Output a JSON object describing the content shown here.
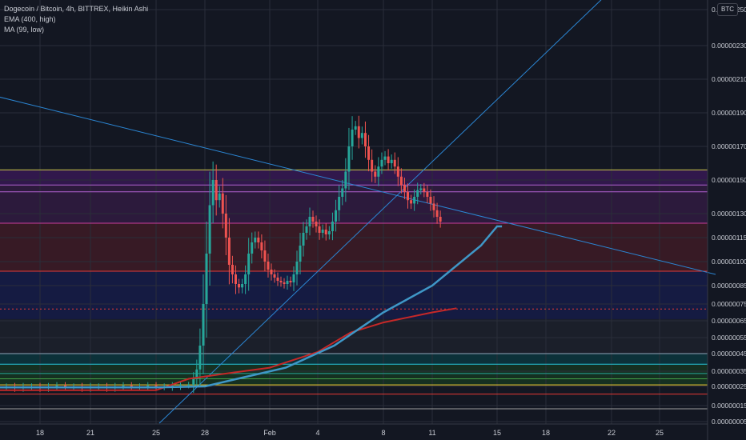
{
  "legend": {
    "symbol": "Dogecoin / Bitcoin, 4h, BITTREX, Heikin Ashi",
    "ema": "EMA (400, high)",
    "ma": "MA (99, low)"
  },
  "currency_badge": "BTC",
  "chart_data": {
    "type": "candlestick",
    "y_axis": {
      "range": [
        4e-07,
        2.6e-06
      ],
      "tick_labels": [
        "0.00000250",
        "0.00000230",
        "0.00000210",
        "0.00000190",
        "0.00000170",
        "0.00000150",
        "0.00000130",
        "0.00000115",
        "0.00000100",
        "0.00000085",
        "0.00000075",
        "0.00000065",
        "0.00000055",
        "0.00000045",
        "0.00000035",
        "0.00000025",
        "0.00000015",
        "0.00000005"
      ],
      "tick_values": [
        2.5,
        2.3,
        2.1,
        1.9,
        1.7,
        1.5,
        1.3,
        1.15,
        1.0,
        0.85,
        0.75,
        0.65,
        0.55,
        0.45,
        0.35,
        0.25,
        0.15,
        0.05
      ]
    },
    "x_axis": {
      "tick_labels": [
        "18",
        "21",
        "25",
        "28",
        "Feb",
        "4",
        "8",
        "11",
        "15",
        "18",
        "22",
        "25"
      ],
      "tick_days": [
        18,
        21,
        25,
        28,
        32,
        35,
        39,
        42,
        46,
        49,
        53,
        56
      ]
    },
    "colors": {
      "up": "#26a69a",
      "down": "#ef5350",
      "ema": "#3f97c7",
      "ma": "#c62828",
      "trendline": "#2b86d4"
    },
    "horizontal_levels": [
      {
        "value": 1.56,
        "color": "#c9c64a"
      },
      {
        "value": 1.47,
        "color": "#b05fd0"
      },
      {
        "value": 1.43,
        "color": "#b05fd0"
      },
      {
        "value": 1.24,
        "color": "#c83c9c"
      },
      {
        "value": 0.94,
        "color": "#e53935"
      },
      {
        "value": 0.72,
        "color": "#e53935",
        "dashed": true
      },
      {
        "value": 0.45,
        "color": "#8fa4b8"
      },
      {
        "value": 0.39,
        "color": "#26c6da"
      },
      {
        "value": 0.335,
        "color": "#26a69a"
      },
      {
        "value": 0.3,
        "color": "#43a047"
      },
      {
        "value": 0.26,
        "color": "#fdd835"
      },
      {
        "value": 0.21,
        "color": "#e53935"
      },
      {
        "value": 0.13,
        "color": "#9e9e9e"
      }
    ],
    "zones": [
      {
        "from": 1.47,
        "to": 1.56,
        "color": "#6a1b9a"
      },
      {
        "from": 1.24,
        "to": 1.47,
        "color": "#5c1f6e"
      },
      {
        "from": 0.94,
        "to": 1.24,
        "color": "#7a1f2b"
      },
      {
        "from": 0.66,
        "to": 0.94,
        "color": "#1a237e"
      },
      {
        "from": 0.45,
        "to": 0.66,
        "color": "#2b2f38"
      },
      {
        "from": 0.39,
        "to": 0.45,
        "color": "#006064"
      },
      {
        "from": 0.26,
        "to": 0.39,
        "color": "#1b5e20"
      }
    ],
    "trendlines": [
      {
        "x1": 10.5,
        "y1": 2.12,
        "x2": 59.5,
        "y2": 0.92
      },
      {
        "x1": 25.2,
        "y1": 0.04,
        "x2": 55.0,
        "y2": 2.78
      }
    ],
    "ema_points": [
      [
        10.5,
        0.245
      ],
      [
        25,
        0.245
      ],
      [
        28,
        0.25
      ],
      [
        30,
        0.3
      ],
      [
        33,
        0.37
      ],
      [
        36,
        0.5
      ],
      [
        39,
        0.7
      ],
      [
        42,
        0.85
      ],
      [
        45,
        1.1
      ],
      [
        46,
        1.22
      ],
      [
        46.3,
        1.22
      ]
    ],
    "ma_points": [
      [
        10.5,
        0.23
      ],
      [
        25,
        0.23
      ],
      [
        27,
        0.3
      ],
      [
        29,
        0.33
      ],
      [
        32,
        0.37
      ],
      [
        35,
        0.46
      ],
      [
        37,
        0.58
      ],
      [
        39,
        0.64
      ],
      [
        42,
        0.7
      ],
      [
        43.5,
        0.725
      ]
    ],
    "candles": [
      {
        "d": 10.5,
        "o": 0.245,
        "c": 0.25
      },
      {
        "d": 11,
        "o": 0.25,
        "c": 0.245
      },
      {
        "d": 11.5,
        "o": 0.245,
        "c": 0.25
      },
      {
        "d": 12,
        "o": 0.25,
        "c": 0.25
      },
      {
        "d": 12.5,
        "o": 0.25,
        "c": 0.245
      },
      {
        "d": 13,
        "o": 0.245,
        "c": 0.25
      },
      {
        "d": 13.5,
        "o": 0.25,
        "c": 0.255
      },
      {
        "d": 14,
        "o": 0.255,
        "c": 0.25
      },
      {
        "d": 14.5,
        "o": 0.25,
        "c": 0.25
      },
      {
        "d": 15,
        "o": 0.25,
        "c": 0.245
      },
      {
        "d": 15.5,
        "o": 0.245,
        "c": 0.25
      },
      {
        "d": 16,
        "o": 0.25,
        "c": 0.25
      },
      {
        "d": 16.5,
        "o": 0.25,
        "c": 0.245
      },
      {
        "d": 17,
        "o": 0.245,
        "c": 0.25
      },
      {
        "d": 17.5,
        "o": 0.25,
        "c": 0.25
      },
      {
        "d": 18,
        "o": 0.25,
        "c": 0.245
      },
      {
        "d": 18.5,
        "o": 0.245,
        "c": 0.25
      },
      {
        "d": 19,
        "o": 0.25,
        "c": 0.255
      },
      {
        "d": 19.5,
        "o": 0.255,
        "c": 0.25
      },
      {
        "d": 20,
        "o": 0.25,
        "c": 0.25
      },
      {
        "d": 20.5,
        "o": 0.25,
        "c": 0.245
      },
      {
        "d": 21,
        "o": 0.245,
        "c": 0.25
      },
      {
        "d": 21.5,
        "o": 0.25,
        "c": 0.25
      },
      {
        "d": 22,
        "o": 0.25,
        "c": 0.245
      },
      {
        "d": 22.5,
        "o": 0.245,
        "c": 0.25
      },
      {
        "d": 23,
        "o": 0.25,
        "c": 0.255
      },
      {
        "d": 23.5,
        "o": 0.255,
        "c": 0.25
      },
      {
        "d": 24,
        "o": 0.25,
        "c": 0.25
      },
      {
        "d": 24.5,
        "o": 0.25,
        "c": 0.255
      },
      {
        "d": 25,
        "o": 0.255,
        "c": 0.25
      },
      {
        "d": 25.5,
        "o": 0.25,
        "c": 0.25
      },
      {
        "d": 26,
        "o": 0.25,
        "c": 0.255
      },
      {
        "d": 26.5,
        "o": 0.255,
        "c": 0.26
      },
      {
        "d": 27,
        "o": 0.26,
        "c": 0.26
      },
      {
        "d": 27.3,
        "o": 0.26,
        "c": 0.3
      },
      {
        "d": 27.5,
        "o": 0.3,
        "c": 0.36
      },
      {
        "d": 27.7,
        "o": 0.36,
        "c": 0.5
      },
      {
        "d": 27.9,
        "o": 0.5,
        "c": 0.75
      },
      {
        "d": 28.1,
        "o": 0.75,
        "c": 1.05
      },
      {
        "d": 28.3,
        "o": 1.05,
        "c": 1.35
      },
      {
        "d": 28.5,
        "o": 1.35,
        "c": 1.5
      },
      {
        "d": 28.7,
        "o": 1.5,
        "c": 1.38
      },
      {
        "d": 28.9,
        "o": 1.38,
        "c": 1.42
      },
      {
        "d": 29.1,
        "o": 1.42,
        "c": 1.3
      },
      {
        "d": 29.3,
        "o": 1.3,
        "c": 1.15
      },
      {
        "d": 29.5,
        "o": 1.15,
        "c": 0.98
      },
      {
        "d": 29.7,
        "o": 0.98,
        "c": 0.92
      },
      {
        "d": 29.9,
        "o": 0.92,
        "c": 0.86
      },
      {
        "d": 30.1,
        "o": 0.86,
        "c": 0.84
      },
      {
        "d": 30.3,
        "o": 0.84,
        "c": 0.86
      },
      {
        "d": 30.5,
        "o": 0.86,
        "c": 0.92
      },
      {
        "d": 30.7,
        "o": 0.92,
        "c": 1.05
      },
      {
        "d": 30.9,
        "o": 1.05,
        "c": 1.12
      },
      {
        "d": 31.1,
        "o": 1.12,
        "c": 1.15
      },
      {
        "d": 31.3,
        "o": 1.15,
        "c": 1.12
      },
      {
        "d": 31.5,
        "o": 1.12,
        "c": 1.07
      },
      {
        "d": 31.7,
        "o": 1.07,
        "c": 1.0
      },
      {
        "d": 31.9,
        "o": 1.0,
        "c": 0.95
      },
      {
        "d": 32.1,
        "o": 0.95,
        "c": 0.92
      },
      {
        "d": 32.3,
        "o": 0.92,
        "c": 0.9
      },
      {
        "d": 32.5,
        "o": 0.9,
        "c": 0.88
      },
      {
        "d": 32.7,
        "o": 0.88,
        "c": 0.87
      },
      {
        "d": 32.9,
        "o": 0.87,
        "c": 0.86
      },
      {
        "d": 33.1,
        "o": 0.86,
        "c": 0.88
      },
      {
        "d": 33.3,
        "o": 0.88,
        "c": 0.87
      },
      {
        "d": 33.5,
        "o": 0.87,
        "c": 0.92
      },
      {
        "d": 33.7,
        "o": 0.92,
        "c": 1.0
      },
      {
        "d": 33.9,
        "o": 1.0,
        "c": 1.1
      },
      {
        "d": 34.1,
        "o": 1.1,
        "c": 1.18
      },
      {
        "d": 34.3,
        "o": 1.18,
        "c": 1.22
      },
      {
        "d": 34.5,
        "o": 1.22,
        "c": 1.28
      },
      {
        "d": 34.7,
        "o": 1.28,
        "c": 1.25
      },
      {
        "d": 34.9,
        "o": 1.25,
        "c": 1.22
      },
      {
        "d": 35.1,
        "o": 1.22,
        "c": 1.18
      },
      {
        "d": 35.3,
        "o": 1.18,
        "c": 1.2
      },
      {
        "d": 35.5,
        "o": 1.2,
        "c": 1.17
      },
      {
        "d": 35.7,
        "o": 1.17,
        "c": 1.19
      },
      {
        "d": 35.9,
        "o": 1.19,
        "c": 1.25
      },
      {
        "d": 36.1,
        "o": 1.25,
        "c": 1.32
      },
      {
        "d": 36.3,
        "o": 1.32,
        "c": 1.4
      },
      {
        "d": 36.5,
        "o": 1.4,
        "c": 1.45
      },
      {
        "d": 36.7,
        "o": 1.45,
        "c": 1.55
      },
      {
        "d": 36.9,
        "o": 1.55,
        "c": 1.7
      },
      {
        "d": 37.1,
        "o": 1.7,
        "c": 1.8
      },
      {
        "d": 37.3,
        "o": 1.8,
        "c": 1.82
      },
      {
        "d": 37.5,
        "o": 1.82,
        "c": 1.75
      },
      {
        "d": 37.7,
        "o": 1.75,
        "c": 1.78
      },
      {
        "d": 37.9,
        "o": 1.78,
        "c": 1.7
      },
      {
        "d": 38.1,
        "o": 1.7,
        "c": 1.62
      },
      {
        "d": 38.3,
        "o": 1.62,
        "c": 1.55
      },
      {
        "d": 38.5,
        "o": 1.55,
        "c": 1.52
      },
      {
        "d": 38.7,
        "o": 1.52,
        "c": 1.58
      },
      {
        "d": 38.9,
        "o": 1.58,
        "c": 1.62
      },
      {
        "d": 39.1,
        "o": 1.62,
        "c": 1.64
      },
      {
        "d": 39.3,
        "o": 1.64,
        "c": 1.6
      },
      {
        "d": 39.5,
        "o": 1.6,
        "c": 1.62
      },
      {
        "d": 39.7,
        "o": 1.62,
        "c": 1.58
      },
      {
        "d": 39.9,
        "o": 1.58,
        "c": 1.52
      },
      {
        "d": 40.1,
        "o": 1.52,
        "c": 1.47
      },
      {
        "d": 40.3,
        "o": 1.47,
        "c": 1.43
      },
      {
        "d": 40.5,
        "o": 1.43,
        "c": 1.38
      },
      {
        "d": 40.7,
        "o": 1.38,
        "c": 1.36
      },
      {
        "d": 40.9,
        "o": 1.36,
        "c": 1.4
      },
      {
        "d": 41.1,
        "o": 1.4,
        "c": 1.44
      },
      {
        "d": 41.3,
        "o": 1.44,
        "c": 1.45
      },
      {
        "d": 41.5,
        "o": 1.45,
        "c": 1.43
      },
      {
        "d": 41.7,
        "o": 1.43,
        "c": 1.4
      },
      {
        "d": 41.9,
        "o": 1.4,
        "c": 1.36
      },
      {
        "d": 42.1,
        "o": 1.36,
        "c": 1.32
      },
      {
        "d": 42.3,
        "o": 1.32,
        "c": 1.28
      },
      {
        "d": 42.5,
        "o": 1.28,
        "c": 1.25
      }
    ]
  }
}
